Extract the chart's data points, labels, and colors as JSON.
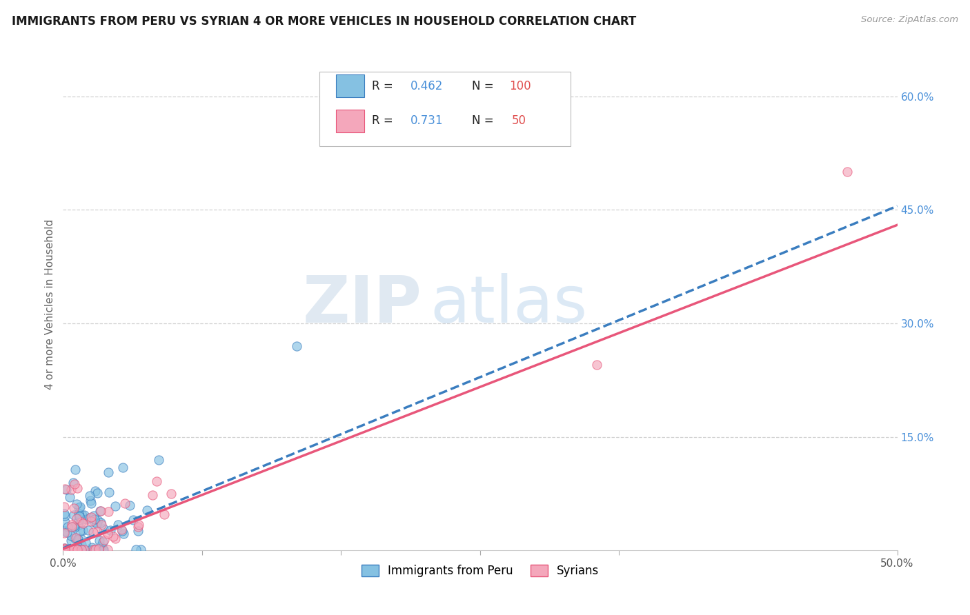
{
  "title": "IMMIGRANTS FROM PERU VS SYRIAN 4 OR MORE VEHICLES IN HOUSEHOLD CORRELATION CHART",
  "source": "Source: ZipAtlas.com",
  "ylabel": "4 or more Vehicles in Household",
  "xlim": [
    0.0,
    0.5
  ],
  "ylim": [
    0.0,
    0.65
  ],
  "xtick_labels": [
    "0.0%",
    "50.0%"
  ],
  "ytick_right_labels": [
    "15.0%",
    "30.0%",
    "45.0%",
    "60.0%"
  ],
  "ytick_right_values": [
    0.15,
    0.3,
    0.45,
    0.6
  ],
  "legend_label1": "Immigrants from Peru",
  "legend_label2": "Syrians",
  "R1": 0.462,
  "N1": 100,
  "R2": 0.731,
  "N2": 50,
  "color1": "#85c1e2",
  "color2": "#f4a7bb",
  "color1_dark": "#3a7dbf",
  "color2_dark": "#e8567a",
  "watermark_zip": "ZIP",
  "watermark_atlas": "atlas",
  "title_fontsize": 12,
  "axis_fontsize": 11,
  "tick_fontsize": 11,
  "background_color": "#ffffff",
  "grid_color": "#cccccc",
  "trend_line1_start_y": 0.005,
  "trend_line1_end_y": 0.455,
  "trend_line2_start_y": 0.002,
  "trend_line2_end_y": 0.43
}
